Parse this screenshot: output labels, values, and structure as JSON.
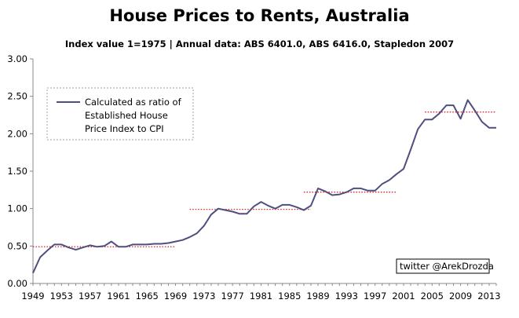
{
  "chart_data": {
    "type": "line",
    "title": "House Prices to Rents, Australia",
    "subtitle": "Index value 1=1975  |  Annual data: ABS 6401.0, ABS 6416.0, Stapledon 2007",
    "ylim": [
      0,
      3
    ],
    "yticks": [
      "0.00",
      "0.50",
      "1.00",
      "1.50",
      "2.00",
      "2.50",
      "3.00"
    ],
    "xlim": [
      1949,
      2014
    ],
    "xticks": [
      "1949",
      "1953",
      "1957",
      "1961",
      "1965",
      "1969",
      "1973",
      "1977",
      "1981",
      "1985",
      "1989",
      "1993",
      "1997",
      "2001",
      "2005",
      "2009",
      "2013"
    ],
    "grid": false,
    "legend_position": "top-left",
    "series": [
      {
        "name": "Calculated as ratio of Established House Price Index to CPI (Rents)",
        "color": "#4f4f7f",
        "x": [
          1949,
          1950,
          1951,
          1952,
          1953,
          1954,
          1955,
          1956,
          1957,
          1958,
          1959,
          1960,
          1961,
          1962,
          1963,
          1964,
          1965,
          1966,
          1967,
          1968,
          1969,
          1970,
          1971,
          1972,
          1973,
          1974,
          1975,
          1976,
          1977,
          1978,
          1979,
          1980,
          1981,
          1982,
          1983,
          1984,
          1985,
          1986,
          1987,
          1988,
          1989,
          1990,
          1991,
          1992,
          1993,
          1994,
          1995,
          1996,
          1997,
          1998,
          1999,
          2000,
          2001,
          2002,
          2003,
          2004,
          2005,
          2006,
          2007,
          2008,
          2009,
          2010,
          2011,
          2012,
          2013,
          2014
        ],
        "values": [
          0.14,
          0.35,
          0.44,
          0.52,
          0.52,
          0.48,
          0.45,
          0.48,
          0.51,
          0.49,
          0.5,
          0.56,
          0.49,
          0.49,
          0.52,
          0.52,
          0.52,
          0.53,
          0.53,
          0.54,
          0.56,
          0.58,
          0.62,
          0.67,
          0.77,
          0.92,
          1.0,
          0.98,
          0.96,
          0.93,
          0.93,
          1.03,
          1.09,
          1.04,
          1.0,
          1.05,
          1.05,
          1.02,
          0.98,
          1.04,
          1.27,
          1.23,
          1.18,
          1.19,
          1.22,
          1.27,
          1.27,
          1.24,
          1.24,
          1.33,
          1.38,
          1.46,
          1.53,
          1.79,
          2.06,
          2.19,
          2.19,
          2.27,
          2.38,
          2.38,
          2.2,
          2.45,
          2.31,
          2.16,
          2.08,
          2.08
        ]
      }
    ],
    "averages": {
      "color": "#e0202a",
      "style": "dotted",
      "segments": [
        {
          "x": [
            1949,
            1969
          ],
          "value": 0.49
        },
        {
          "x": [
            1971,
            1988
          ],
          "value": 0.99
        },
        {
          "x": [
            1987,
            2000
          ],
          "value": 1.22
        },
        {
          "x": [
            2004,
            2014
          ],
          "value": 2.29
        }
      ]
    },
    "credit": "twitter @ArekDrozda"
  }
}
